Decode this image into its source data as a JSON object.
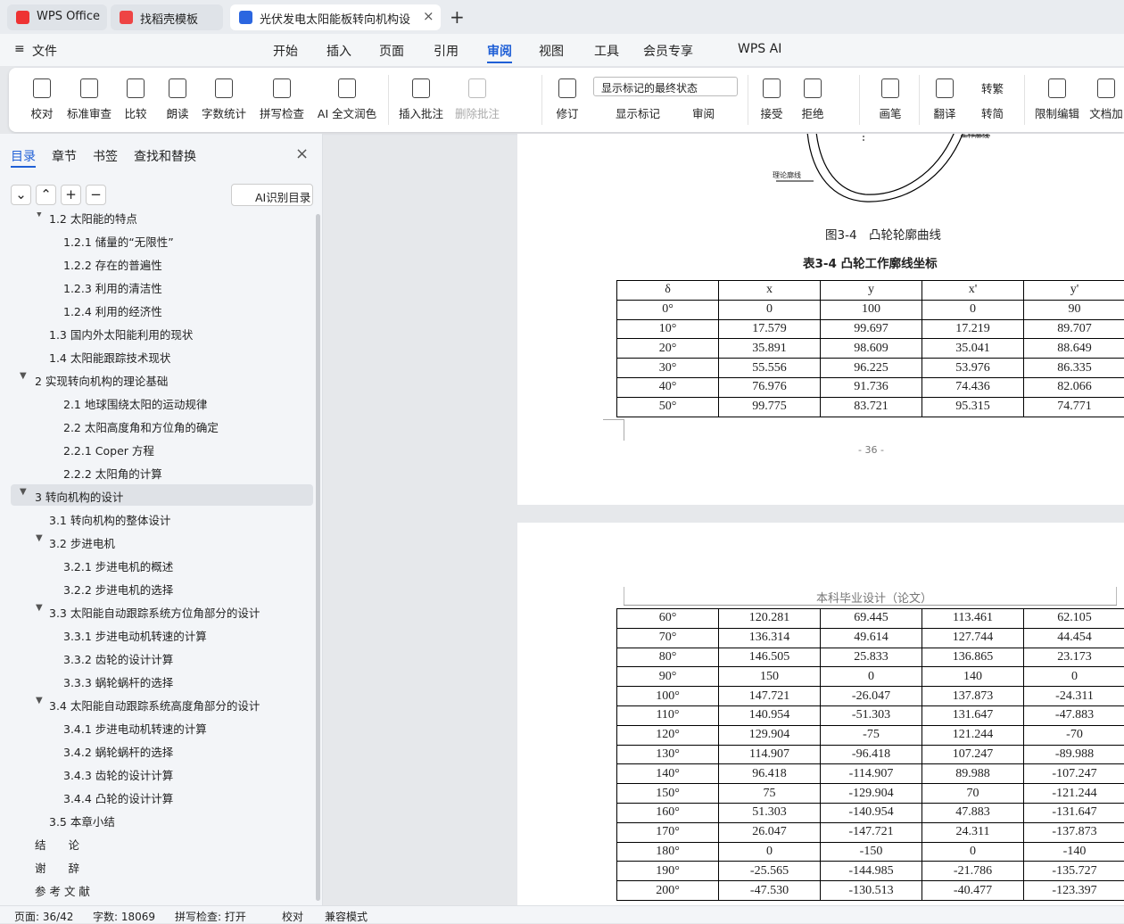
{
  "tabs": [
    "WPS Office",
    "找稻壳模板",
    "光伏发电太阳能板转向机构设"
  ],
  "menu": [
    "文件",
    "开始",
    "插入",
    "页面",
    "引用",
    "审阅",
    "视图",
    "工具",
    "会员专享",
    "WPS AI"
  ],
  "ribbon": [
    "校对",
    "标准审查",
    "比较",
    "朗读",
    "字数统计",
    "拼写检查",
    "AI 全文润色",
    "插入批注",
    "删除批注",
    "修订",
    "显示标记",
    "审阅",
    "接受",
    "拒绝",
    "画笔",
    "翻译",
    "转繁",
    "转简",
    "限制编辑",
    "文档加"
  ],
  "ribbon_dropdown": "显示标记的最终状态",
  "sidebar": {
    "tabs": [
      "目录",
      "章节",
      "书签",
      "查找和替换"
    ],
    "ai_button": "AI识别目录",
    "toc": [
      {
        "level": 1,
        "text": "1.2  太阳能的特点"
      },
      {
        "level": 2,
        "text": "1.2.1  储量的“无限性”"
      },
      {
        "level": 2,
        "text": "1.2.2  存在的普遍性"
      },
      {
        "level": 2,
        "text": "1.2.3  利用的清洁性"
      },
      {
        "level": 2,
        "text": "1.2.4  利用的经济性"
      },
      {
        "level": 1,
        "text": "1.3  国内外太阳能利用的现状"
      },
      {
        "level": 1,
        "text": "1.4  太阳能跟踪技术现状"
      },
      {
        "level": 0,
        "text": "2  实现转向机构的理论基础"
      },
      {
        "level": 2,
        "text": "2.1  地球围绕太阳的运动规律"
      },
      {
        "level": 2,
        "text": "2.2  太阳高度角和方位角的确定"
      },
      {
        "level": 2,
        "text": "2.2.1 Coper 方程"
      },
      {
        "level": 2,
        "text": "2.2.2  太阳角的计算"
      },
      {
        "level": 0,
        "text": "3  转向机构的设计"
      },
      {
        "level": 1,
        "text": "3.1  转向机构的整体设计"
      },
      {
        "level": 1,
        "text": "3.2  步进电机"
      },
      {
        "level": 2,
        "text": "3.2.1  步进电机的概述"
      },
      {
        "level": 2,
        "text": "3.2.2 步进电机的选择"
      },
      {
        "level": 1,
        "text": "3.3  太阳能自动跟踪系统方位角部分的设计"
      },
      {
        "level": 2,
        "text": "3.3.1 步进电动机转速的计算"
      },
      {
        "level": 2,
        "text": "3.3.2  齿轮的设计计算"
      },
      {
        "level": 2,
        "text": "3.3.3  蜗轮蜗杆的选择"
      },
      {
        "level": 1,
        "text": "3.4  太阳能自动跟踪系统高度角部分的设计"
      },
      {
        "level": 2,
        "text": "3.4.1  步进电动机转速的计算"
      },
      {
        "level": 2,
        "text": "3.4.2  蜗轮蜗杆的选择"
      },
      {
        "level": 2,
        "text": "3.4.3  齿轮的设计计算"
      },
      {
        "level": 2,
        "text": "3.4.4  凸轮的设计计算"
      },
      {
        "level": 1,
        "text": "3.5  本章小结"
      },
      {
        "level": 0,
        "text": "结　　论"
      },
      {
        "level": 0,
        "text": "谢　　辞"
      },
      {
        "level": 0,
        "text": "参 考 文 献"
      }
    ]
  },
  "document": {
    "figure_labels": [
      "工作廓线",
      "理论廓线"
    ],
    "figure_caption": "图3-4　凸轮轮廓曲线",
    "table_caption": "表3-4  凸轮工作廓线坐标",
    "table_header": [
      "δ",
      "x",
      "y",
      "x'",
      "y'"
    ],
    "table1": [
      [
        "0°",
        "0",
        "100",
        "0",
        "90"
      ],
      [
        "10°",
        "17.579",
        "99.697",
        "17.219",
        "89.707"
      ],
      [
        "20°",
        "35.891",
        "98.609",
        "35.041",
        "88.649"
      ],
      [
        "30°",
        "55.556",
        "96.225",
        "53.976",
        "86.335"
      ],
      [
        "40°",
        "76.976",
        "91.736",
        "74.436",
        "82.066"
      ],
      [
        "50°",
        "99.775",
        "83.721",
        "95.315",
        "74.771"
      ]
    ],
    "page_number": "- 36 -",
    "page_header": "本科毕业设计（论文）",
    "table2": [
      [
        "60°",
        "120.281",
        "69.445",
        "113.461",
        "62.105"
      ],
      [
        "70°",
        "136.314",
        "49.614",
        "127.744",
        "44.454"
      ],
      [
        "80°",
        "146.505",
        "25.833",
        "136.865",
        "23.173"
      ],
      [
        "90°",
        "150",
        "0",
        "140",
        "0"
      ],
      [
        "100°",
        "147.721",
        "-26.047",
        "137.873",
        "-24.311"
      ],
      [
        "110°",
        "140.954",
        "-51.303",
        "131.647",
        "-47.883"
      ],
      [
        "120°",
        "129.904",
        "-75",
        "121.244",
        "-70"
      ],
      [
        "130°",
        "114.907",
        "-96.418",
        "107.247",
        "-89.988"
      ],
      [
        "140°",
        "96.418",
        "-114.907",
        "89.988",
        "-107.247"
      ],
      [
        "150°",
        "75",
        "-129.904",
        "70",
        "-121.244"
      ],
      [
        "160°",
        "51.303",
        "-140.954",
        "47.883",
        "-131.647"
      ],
      [
        "170°",
        "26.047",
        "-147.721",
        "24.311",
        "-137.873"
      ],
      [
        "180°",
        "0",
        "-150",
        "0",
        "-140"
      ],
      [
        "190°",
        "-25.565",
        "-144.985",
        "-21.786",
        "-135.727"
      ],
      [
        "200°",
        "-47.530",
        "-130.513",
        "-40.477",
        "-123.397"
      ]
    ]
  },
  "status": [
    "页面: 36/42",
    "字数: 18069",
    "拼写检查: 打开",
    "校对",
    "兼容模式"
  ]
}
